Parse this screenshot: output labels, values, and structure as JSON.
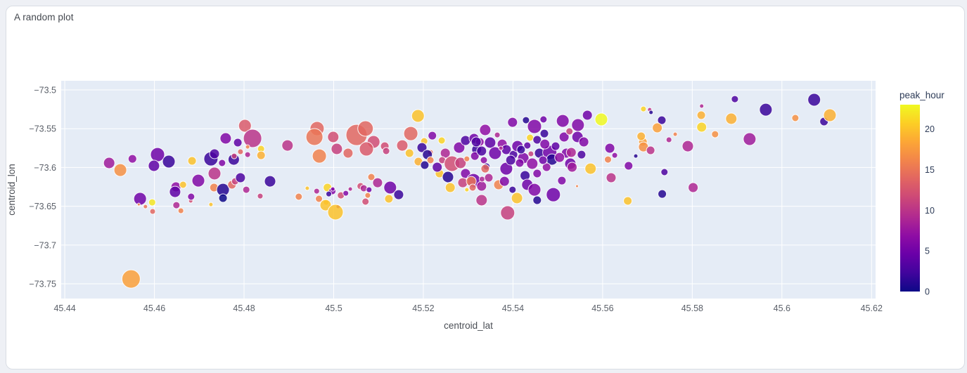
{
  "chart_data": {
    "type": "scatter",
    "title": "A random plot",
    "xlabel": "centroid_lat",
    "ylabel": "centroid_lon",
    "grid": true,
    "legend_position": "none",
    "plot_bg": "#e5ecf6",
    "grid_color": "#ffffff",
    "x_range": [
      45.4392,
      45.6209
    ],
    "y_range": [
      -73.769,
      -73.4882
    ],
    "x_ticks": [
      45.44,
      45.46,
      45.48,
      45.5,
      45.52,
      45.54,
      45.56,
      45.58,
      45.6,
      45.62
    ],
    "x_tick_labels": [
      "45.44",
      "45.46",
      "45.48",
      "45.5",
      "45.52",
      "45.54",
      "45.56",
      "45.58",
      "45.6",
      "45.62"
    ],
    "y_ticks": [
      -73.5,
      -73.55,
      -73.6,
      -73.65,
      -73.7,
      -73.75
    ],
    "y_tick_labels": [
      "−73.5",
      "−73.55",
      "−73.6",
      "−73.65",
      "−73.7",
      "−73.75"
    ],
    "colorbar": {
      "title": "peak_hour",
      "cmin": 0,
      "cmax": 23,
      "ticks": [
        0,
        5,
        10,
        15,
        20
      ],
      "tick_labels": [
        "0",
        "5",
        "10",
        "15",
        "20"
      ],
      "colorscale": "plasma",
      "colorscale_stops": [
        "#0d0887",
        "#41049d",
        "#6a00a8",
        "#8f0da4",
        "#b12a90",
        "#cc4778",
        "#e16462",
        "#f2844b",
        "#fca636",
        "#fcce25",
        "#f0f921"
      ]
    },
    "point_fields": [
      "centroid_lat",
      "centroid_lon",
      "peak_hour",
      "size_px"
    ],
    "points": [
      [
        45.4499,
        -73.5942,
        8,
        8
      ],
      [
        45.4524,
        -73.6033,
        17,
        9
      ],
      [
        45.4551,
        -73.5888,
        7,
        6
      ],
      [
        45.4607,
        -73.5834,
        5,
        10
      ],
      [
        45.4599,
        -73.5978,
        4,
        8
      ],
      [
        45.4632,
        -73.5924,
        2,
        9
      ],
      [
        45.4684,
        -73.5915,
        20,
        6
      ],
      [
        45.4726,
        -73.5888,
        2,
        10
      ],
      [
        45.4734,
        -73.5824,
        3,
        7
      ],
      [
        45.4751,
        -73.5942,
        6,
        5
      ],
      [
        45.4759,
        -73.5625,
        6,
        8
      ],
      [
        45.4786,
        -73.5679,
        4,
        6
      ],
      [
        45.4802,
        -73.5462,
        13,
        9
      ],
      [
        45.4819,
        -73.5625,
        10,
        13
      ],
      [
        45.4792,
        -73.5797,
        14,
        4
      ],
      [
        45.4808,
        -73.5734,
        16,
        3
      ],
      [
        45.4808,
        -73.5834,
        9,
        4
      ],
      [
        45.4838,
        -73.5761,
        21,
        5
      ],
      [
        45.4838,
        -73.5843,
        19,
        6
      ],
      [
        45.4777,
        -73.5897,
        2,
        8
      ],
      [
        45.4778,
        -73.5852,
        11,
        4
      ],
      [
        45.4734,
        -73.6078,
        10,
        9
      ],
      [
        45.4698,
        -73.6169,
        6,
        9
      ],
      [
        45.4648,
        -73.625,
        7,
        7
      ],
      [
        45.4664,
        -73.6223,
        20,
        5
      ],
      [
        45.4646,
        -73.6314,
        4,
        8
      ],
      [
        45.4733,
        -73.6259,
        16,
        6
      ],
      [
        45.4753,
        -73.6287,
        1,
        9
      ],
      [
        45.4753,
        -73.6395,
        0,
        6
      ],
      [
        45.4773,
        -73.6223,
        14,
        6
      ],
      [
        45.478,
        -73.6178,
        11,
        5
      ],
      [
        45.4792,
        -73.6132,
        3,
        7
      ],
      [
        45.4805,
        -73.6287,
        9,
        5
      ],
      [
        45.4568,
        -73.6404,
        5,
        9
      ],
      [
        45.4595,
        -73.645,
        22,
        5
      ],
      [
        45.4565,
        -73.6477,
        16,
        2
      ],
      [
        45.458,
        -73.6504,
        15,
        3
      ],
      [
        45.4596,
        -73.6567,
        14,
        4
      ],
      [
        45.4649,
        -73.6486,
        9,
        5
      ],
      [
        45.4659,
        -73.6558,
        16,
        4
      ],
      [
        45.4681,
        -73.6431,
        12,
        3
      ],
      [
        45.4726,
        -73.6477,
        20,
        3
      ],
      [
        45.4682,
        -73.6377,
        6,
        5
      ],
      [
        45.4858,
        -73.6178,
        2,
        8
      ],
      [
        45.4836,
        -73.6368,
        11,
        4
      ],
      [
        45.4548,
        -73.7437,
        18,
        13
      ],
      [
        45.5188,
        -73.5335,
        20,
        9
      ],
      [
        45.4963,
        -73.5498,
        14,
        10
      ],
      [
        45.4957,
        -73.5607,
        15,
        12
      ],
      [
        45.4999,
        -73.5607,
        12,
        8
      ],
      [
        45.5051,
        -73.558,
        14,
        15
      ],
      [
        45.5071,
        -73.5498,
        14,
        11
      ],
      [
        45.5089,
        -73.567,
        12,
        9
      ],
      [
        45.5073,
        -73.5761,
        13,
        10
      ],
      [
        45.5007,
        -73.5761,
        11,
        8
      ],
      [
        45.5032,
        -73.5815,
        14,
        7
      ],
      [
        45.4897,
        -73.5716,
        10,
        8
      ],
      [
        45.4968,
        -73.5852,
        16,
        10
      ],
      [
        45.5114,
        -73.5725,
        12,
        6
      ],
      [
        45.5117,
        -73.5788,
        11,
        5
      ],
      [
        45.5172,
        -73.5562,
        14,
        10
      ],
      [
        45.5153,
        -73.5716,
        13,
        8
      ],
      [
        45.4986,
        -73.6259,
        21,
        6
      ],
      [
        45.4997,
        -73.6305,
        6,
        5
      ],
      [
        45.4989,
        -73.6341,
        2,
        4
      ],
      [
        45.4967,
        -73.6404,
        16,
        5
      ],
      [
        45.4983,
        -73.645,
        20,
        4
      ],
      [
        45.501,
        -73.6504,
        7,
        3
      ],
      [
        45.4941,
        -73.6268,
        20,
        3
      ],
      [
        45.4962,
        -73.6305,
        9,
        4
      ],
      [
        45.4998,
        -73.6278,
        6,
        3
      ],
      [
        45.4922,
        -73.6377,
        16,
        5
      ],
      [
        45.5016,
        -73.6359,
        12,
        5
      ],
      [
        45.5027,
        -73.6332,
        6,
        4
      ],
      [
        45.5037,
        -73.6278,
        9,
        3
      ],
      [
        45.506,
        -73.6241,
        12,
        5
      ],
      [
        45.5067,
        -73.6268,
        9,
        5
      ],
      [
        45.5079,
        -73.6287,
        5,
        4
      ],
      [
        45.5084,
        -73.6123,
        16,
        5
      ],
      [
        45.5098,
        -73.6196,
        9,
        7
      ],
      [
        45.5071,
        -73.644,
        12,
        5
      ],
      [
        45.5076,
        -73.6359,
        16,
        4
      ],
      [
        45.4982,
        -73.6486,
        20,
        8
      ],
      [
        45.5004,
        -73.6576,
        20,
        11
      ],
      [
        45.5126,
        -73.6259,
        5,
        9
      ],
      [
        45.5123,
        -73.6404,
        20,
        6
      ],
      [
        45.5145,
        -73.635,
        2,
        7
      ],
      [
        45.5202,
        -73.5661,
        20,
        5
      ],
      [
        45.522,
        -73.5589,
        6,
        6
      ],
      [
        45.5241,
        -73.5652,
        21,
        5
      ],
      [
        45.5216,
        -73.5806,
        14,
        4
      ],
      [
        45.5197,
        -73.5743,
        2,
        7
      ],
      [
        45.5209,
        -73.5834,
        1,
        7
      ],
      [
        45.5169,
        -73.5815,
        20,
        6
      ],
      [
        45.5189,
        -73.5924,
        19,
        6
      ],
      [
        45.5216,
        -73.5906,
        16,
        5
      ],
      [
        45.5203,
        -73.5969,
        1,
        6
      ],
      [
        45.5236,
        -73.6078,
        20,
        6
      ],
      [
        45.5231,
        -73.5996,
        4,
        7
      ],
      [
        45.5249,
        -73.5815,
        9,
        7
      ],
      [
        45.5242,
        -73.5906,
        11,
        5
      ],
      [
        45.5264,
        -73.5951,
        12,
        11
      ],
      [
        45.5283,
        -73.5942,
        11,
        8
      ],
      [
        45.5297,
        -73.5888,
        16,
        4
      ],
      [
        45.528,
        -73.5743,
        6,
        8
      ],
      [
        45.5294,
        -73.5652,
        3,
        7
      ],
      [
        45.5313,
        -73.5625,
        5,
        7
      ],
      [
        45.5326,
        -73.567,
        7,
        6
      ],
      [
        45.5319,
        -73.577,
        2,
        7
      ],
      [
        45.5315,
        -73.5852,
        6,
        6
      ],
      [
        45.5335,
        -73.5906,
        7,
        5
      ],
      [
        45.5255,
        -73.6123,
        1,
        8
      ],
      [
        45.5294,
        -73.6078,
        6,
        7
      ],
      [
        45.5312,
        -73.6169,
        5,
        10
      ],
      [
        45.5288,
        -73.6196,
        11,
        7
      ],
      [
        45.526,
        -73.6259,
        20,
        7
      ],
      [
        45.533,
        -73.6241,
        8,
        7
      ],
      [
        45.5341,
        -73.5987,
        2,
        5
      ],
      [
        45.5331,
        -73.615,
        9,
        4
      ],
      [
        45.5297,
        -73.6287,
        21,
        3
      ],
      [
        45.5399,
        -73.5417,
        6,
        7
      ],
      [
        45.5429,
        -73.539,
        1,
        5
      ],
      [
        45.5448,
        -73.5471,
        6,
        10
      ],
      [
        45.5468,
        -73.538,
        5,
        5
      ],
      [
        45.5511,
        -73.5399,
        6,
        9
      ],
      [
        45.5566,
        -73.5326,
        5,
        7
      ],
      [
        45.5597,
        -73.538,
        23,
        9
      ],
      [
        45.5545,
        -73.5453,
        6,
        9
      ],
      [
        45.5691,
        -73.5245,
        21,
        4
      ],
      [
        45.5705,
        -73.5254,
        10,
        3
      ],
      [
        45.5708,
        -73.529,
        1,
        3
      ],
      [
        45.5732,
        -73.539,
        2,
        6
      ],
      [
        45.5722,
        -73.5489,
        18,
        7
      ],
      [
        45.5338,
        -73.5516,
        7,
        8
      ],
      [
        45.5365,
        -73.558,
        9,
        4
      ],
      [
        45.5438,
        -73.5616,
        21,
        5
      ],
      [
        45.5454,
        -73.5643,
        3,
        6
      ],
      [
        45.547,
        -73.5562,
        2,
        6
      ],
      [
        45.5514,
        -73.5607,
        6,
        7
      ],
      [
        45.5526,
        -73.5534,
        11,
        5
      ],
      [
        45.5544,
        -73.5607,
        5,
        8
      ],
      [
        45.5558,
        -73.567,
        6,
        7
      ],
      [
        45.5318,
        -73.567,
        3,
        7
      ],
      [
        45.5349,
        -73.5679,
        4,
        8
      ],
      [
        45.5376,
        -73.5698,
        7,
        7
      ],
      [
        45.533,
        -73.5788,
        3,
        7
      ],
      [
        45.536,
        -73.5815,
        5,
        9
      ],
      [
        45.5385,
        -73.577,
        4,
        7
      ],
      [
        45.5373,
        -73.5752,
        9,
        3
      ],
      [
        45.5401,
        -73.5834,
        3,
        6
      ],
      [
        45.544,
        -73.5824,
        11,
        4
      ],
      [
        45.5432,
        -73.5716,
        4,
        5
      ],
      [
        45.5459,
        -73.5815,
        2,
        7
      ],
      [
        45.5482,
        -73.5806,
        5,
        10
      ],
      [
        45.5487,
        -73.5897,
        1,
        8
      ],
      [
        45.5519,
        -73.5815,
        6,
        7
      ],
      [
        45.553,
        -73.5806,
        9,
        7
      ],
      [
        45.5553,
        -73.5834,
        3,
        6
      ],
      [
        45.5528,
        -73.5951,
        5,
        8
      ],
      [
        45.5475,
        -73.5996,
        7,
        6
      ],
      [
        45.5423,
        -73.5879,
        6,
        8
      ],
      [
        45.5443,
        -73.5951,
        7,
        8
      ],
      [
        45.5454,
        -73.6078,
        6,
        6
      ],
      [
        45.5427,
        -73.6105,
        2,
        7
      ],
      [
        45.5385,
        -73.6015,
        5,
        9
      ],
      [
        45.5338,
        -73.6015,
        14,
        6
      ],
      [
        45.5307,
        -73.6178,
        15,
        7
      ],
      [
        45.531,
        -73.6259,
        14,
        5
      ],
      [
        45.5346,
        -73.6132,
        9,
        6
      ],
      [
        45.5368,
        -73.6223,
        16,
        7
      ],
      [
        45.5381,
        -73.6178,
        6,
        7
      ],
      [
        45.5399,
        -73.6287,
        2,
        5
      ],
      [
        45.5409,
        -73.6395,
        20,
        8
      ],
      [
        45.5432,
        -73.6223,
        5,
        8
      ],
      [
        45.5448,
        -73.6287,
        6,
        9
      ],
      [
        45.5454,
        -73.6422,
        1,
        6
      ],
      [
        45.549,
        -73.635,
        5,
        10
      ],
      [
        45.533,
        -73.6422,
        10,
        8
      ],
      [
        45.5388,
        -73.6585,
        11,
        10
      ],
      [
        45.5509,
        -73.6169,
        6,
        6
      ],
      [
        45.5532,
        -73.5996,
        8,
        7
      ],
      [
        45.5573,
        -73.6015,
        20,
        8
      ],
      [
        45.5543,
        -73.6241,
        16,
        2
      ],
      [
        45.541,
        -73.5725,
        5,
        8
      ],
      [
        45.5418,
        -73.577,
        2,
        6
      ],
      [
        45.5471,
        -73.5698,
        6,
        7
      ],
      [
        45.5495,
        -73.5725,
        4,
        6
      ],
      [
        45.5504,
        -73.587,
        7,
        7
      ],
      [
        45.5467,
        -73.5906,
        5,
        6
      ],
      [
        45.5415,
        -73.5942,
        6,
        6
      ],
      [
        45.5395,
        -73.5906,
        3,
        7
      ],
      [
        45.5616,
        -73.5752,
        6,
        7
      ],
      [
        45.5627,
        -73.5843,
        7,
        4
      ],
      [
        45.5612,
        -73.5897,
        16,
        5
      ],
      [
        45.5619,
        -73.6132,
        10,
        7
      ],
      [
        45.5658,
        -73.5978,
        6,
        6
      ],
      [
        45.5674,
        -73.5852,
        1,
        3
      ],
      [
        45.569,
        -73.567,
        18,
        6
      ],
      [
        45.5691,
        -73.5734,
        17,
        7
      ],
      [
        45.5707,
        -73.5779,
        10,
        6
      ],
      [
        45.5686,
        -73.5598,
        19,
        6
      ],
      [
        45.5656,
        -73.6431,
        20,
        6
      ],
      [
        45.5733,
        -73.6341,
        1,
        6
      ],
      [
        45.5738,
        -73.606,
        3,
        5
      ],
      [
        45.5748,
        -73.5643,
        9,
        4
      ],
      [
        45.5762,
        -73.5571,
        16,
        3
      ],
      [
        45.579,
        -73.5725,
        9,
        8
      ],
      [
        45.5802,
        -73.6259,
        9,
        7
      ],
      [
        45.5821,
        -73.5208,
        9,
        3
      ],
      [
        45.582,
        -73.5326,
        19,
        6
      ],
      [
        45.5821,
        -73.548,
        21,
        7
      ],
      [
        45.5851,
        -73.5571,
        17,
        5
      ],
      [
        45.5887,
        -73.5371,
        19,
        8
      ],
      [
        45.5895,
        -73.5118,
        3,
        5
      ],
      [
        45.5928,
        -73.5634,
        8,
        9
      ],
      [
        45.5964,
        -73.5254,
        2,
        9
      ],
      [
        45.603,
        -73.5362,
        17,
        5
      ],
      [
        45.6072,
        -73.5127,
        2,
        9
      ],
      [
        45.6094,
        -73.5407,
        2,
        6
      ],
      [
        45.6107,
        -73.5326,
        19,
        9
      ]
    ]
  }
}
